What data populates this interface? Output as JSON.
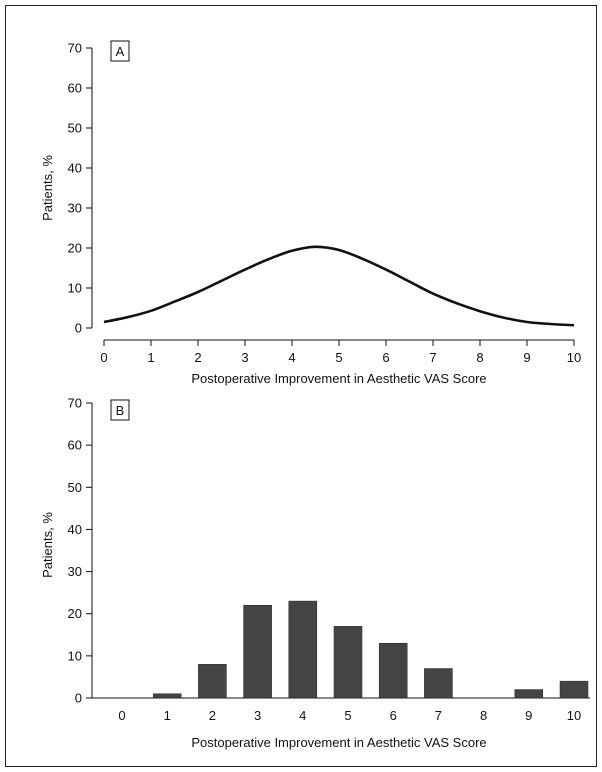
{
  "chart_data": [
    {
      "type": "line",
      "panel_label": "A",
      "xlabel": "Postoperative Improvement in Aesthetic VAS Score",
      "ylabel": "Patients, %",
      "xlim": [
        0,
        10
      ],
      "ylim": [
        0,
        70
      ],
      "x_ticks": [
        "0",
        "1",
        "2",
        "3",
        "4",
        "5",
        "6",
        "7",
        "8",
        "9",
        "10"
      ],
      "y_ticks": [
        "0",
        "10",
        "20",
        "30",
        "40",
        "50",
        "60",
        "70"
      ],
      "grid": false,
      "legend": "none",
      "x": [
        0,
        0.5,
        1,
        1.5,
        2,
        2.5,
        3,
        3.5,
        4,
        4.5,
        5,
        5.5,
        6,
        6.5,
        7,
        7.5,
        8,
        8.5,
        9,
        9.5,
        10
      ],
      "y": [
        1.5,
        2.7,
        4.3,
        6.6,
        9.0,
        11.8,
        14.6,
        17.2,
        19.3,
        20.3,
        19.5,
        17.3,
        14.6,
        11.6,
        8.6,
        6.2,
        4.2,
        2.6,
        1.5,
        1.0,
        0.7
      ]
    },
    {
      "type": "bar",
      "panel_label": "B",
      "xlabel": "Postoperative Improvement in Aesthetic VAS Score",
      "ylabel": "Patients, %",
      "ylim": [
        0,
        70
      ],
      "y_ticks": [
        "0",
        "10",
        "20",
        "30",
        "40",
        "50",
        "60",
        "70"
      ],
      "grid": false,
      "legend": "none",
      "categories": [
        "0",
        "1",
        "2",
        "3",
        "4",
        "5",
        "6",
        "7",
        "8",
        "9",
        "10"
      ],
      "values": [
        0,
        1,
        8,
        22,
        23,
        17,
        13,
        7,
        0,
        2,
        4
      ]
    }
  ]
}
